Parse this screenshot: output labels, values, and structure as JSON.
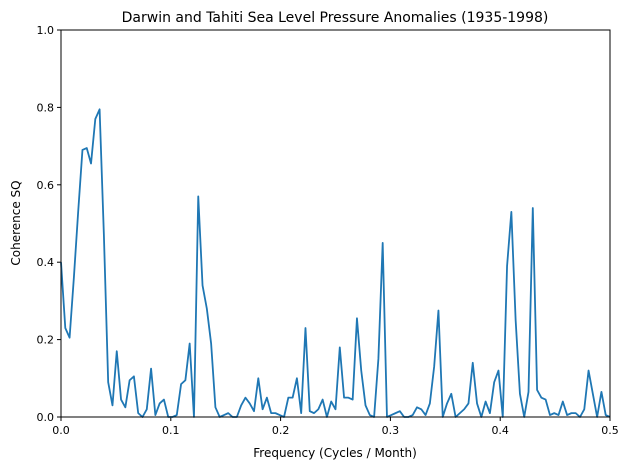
{
  "chart_data": {
    "type": "line",
    "title": "Darwin and Tahiti Sea Level Pressure Anomalies (1935-1998)",
    "xlabel": "Frequency (Cycles / Month)",
    "ylabel": "Coherence SQ",
    "xlim": [
      0,
      0.5
    ],
    "ylim": [
      0,
      1.0
    ],
    "grid": false,
    "xticks": [
      0.0,
      0.1,
      0.2,
      0.3,
      0.4,
      0.5
    ],
    "xtick_labels": [
      "0.0",
      "0.1",
      "0.2",
      "0.3",
      "0.4",
      "0.5"
    ],
    "yticks": [
      0.0,
      0.2,
      0.4,
      0.6,
      0.8,
      1.0
    ],
    "ytick_labels": [
      "0.0",
      "0.2",
      "0.4",
      "0.6",
      "0.8",
      "1.0"
    ],
    "x_step": 0.00390625,
    "series": [
      {
        "name": "coherence",
        "color": "#1f77b4",
        "values": [
          0.4,
          0.23,
          0.205,
          0.36,
          0.53,
          0.69,
          0.695,
          0.655,
          0.77,
          0.795,
          0.47,
          0.09,
          0.03,
          0.17,
          0.045,
          0.025,
          0.095,
          0.105,
          0.01,
          0.0,
          0.02,
          0.125,
          0.005,
          0.035,
          0.045,
          0.0,
          0.0,
          0.005,
          0.085,
          0.095,
          0.19,
          0.0,
          0.57,
          0.34,
          0.28,
          0.19,
          0.025,
          0.0,
          0.005,
          0.01,
          0.0,
          0.0,
          0.03,
          0.05,
          0.035,
          0.015,
          0.1,
          0.02,
          0.05,
          0.01,
          0.01,
          0.005,
          0.0,
          0.05,
          0.05,
          0.1,
          0.01,
          0.23,
          0.015,
          0.01,
          0.02,
          0.045,
          0.0,
          0.04,
          0.02,
          0.18,
          0.05,
          0.05,
          0.045,
          0.255,
          0.12,
          0.03,
          0.005,
          0.0,
          0.15,
          0.45,
          0.0,
          0.005,
          0.01,
          0.015,
          0.0,
          0.0,
          0.005,
          0.025,
          0.02,
          0.005,
          0.035,
          0.13,
          0.275,
          0.0,
          0.035,
          0.06,
          0.0,
          0.01,
          0.02,
          0.035,
          0.14,
          0.035,
          0.0,
          0.04,
          0.01,
          0.09,
          0.12,
          0.0,
          0.39,
          0.53,
          0.25,
          0.06,
          0.0,
          0.065,
          0.54,
          0.07,
          0.05,
          0.045,
          0.005,
          0.01,
          0.005,
          0.04,
          0.005,
          0.01,
          0.01,
          0.0,
          0.02,
          0.12,
          0.06,
          0.0,
          0.065,
          0.005,
          0.0
        ]
      }
    ]
  }
}
